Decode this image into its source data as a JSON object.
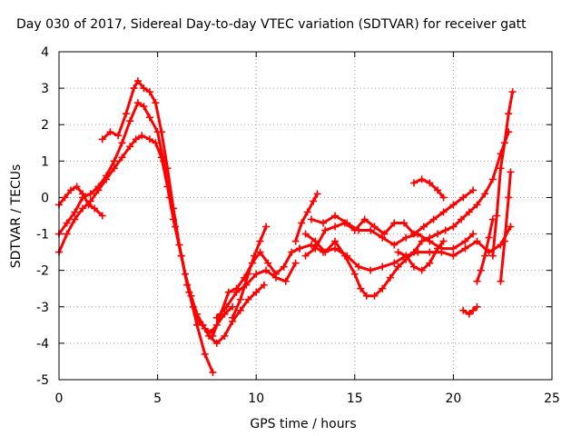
{
  "chart_data": {
    "type": "scatter",
    "title": "Day 030 of 2017, Sidereal Day-to-day VTEC variation (SDTVAR) for receiver gatt",
    "xlabel": "GPS time / hours",
    "ylabel": "SDTVAR / TECUs",
    "xlim": [
      0,
      25
    ],
    "ylim": [
      -5,
      4
    ],
    "x_ticks": [
      "0",
      "5",
      "10",
      "15",
      "20",
      "25"
    ],
    "y_ticks": [
      "-5",
      "-4",
      "-3",
      "-2",
      "-1",
      "0",
      "1",
      "2",
      "3",
      "4"
    ],
    "grid": true,
    "marker": "plus",
    "color": "#ff0000",
    "series": [
      {
        "x": [
          0.0,
          0.3,
          0.6,
          0.9,
          1.2,
          1.5,
          1.8,
          2.2
        ],
        "y": [
          -0.2,
          0.0,
          0.2,
          0.3,
          0.1,
          -0.2,
          -0.3,
          -0.5
        ]
      },
      {
        "x": [
          0.0,
          0.4,
          0.8,
          1.2,
          1.6,
          2.0,
          2.4,
          2.8,
          3.2,
          3.6,
          3.9,
          4.2,
          4.6,
          4.9,
          5.2,
          5.5,
          5.8,
          6.2,
          6.6,
          7.0,
          7.4,
          7.8
        ],
        "y": [
          -1.5,
          -1.0,
          -0.6,
          -0.3,
          -0.1,
          0.2,
          0.5,
          0.8,
          1.1,
          1.4,
          1.6,
          1.7,
          1.6,
          1.5,
          1.1,
          0.3,
          -0.6,
          -1.6,
          -2.6,
          -3.5,
          -4.3,
          -4.8
        ]
      },
      {
        "x": [
          0.0,
          0.4,
          0.8,
          1.2,
          1.6,
          2.0,
          2.4,
          2.8,
          3.2,
          3.6,
          4.0,
          4.3,
          4.6,
          5.0,
          5.3,
          5.6,
          5.9,
          6.2,
          6.5,
          6.8,
          7.1,
          7.4,
          7.7,
          8.0,
          8.4,
          8.8
        ],
        "y": [
          -1.0,
          -0.7,
          -0.4,
          0.0,
          0.1,
          0.3,
          0.6,
          1.0,
          1.5,
          2.1,
          2.6,
          2.5,
          2.2,
          1.8,
          1.0,
          0.0,
          -0.8,
          -1.6,
          -2.4,
          -3.0,
          -3.4,
          -3.6,
          -3.7,
          -3.5,
          -3.2,
          -3.0
        ]
      },
      {
        "x": [
          2.2,
          2.6,
          3.0,
          3.4,
          3.8,
          4.0,
          4.3,
          4.6,
          4.9,
          5.2,
          5.5,
          5.8,
          6.1,
          6.4,
          6.7,
          7.0,
          7.3,
          7.6,
          8.0,
          8.4,
          8.8,
          9.2,
          9.6,
          10.0,
          10.4
        ],
        "y": [
          1.6,
          1.8,
          1.7,
          2.3,
          3.0,
          3.2,
          3.0,
          2.9,
          2.6,
          1.8,
          0.8,
          -0.3,
          -1.3,
          -2.1,
          -2.7,
          -3.2,
          -3.5,
          -3.8,
          -4.0,
          -3.8,
          -3.4,
          -3.1,
          -2.8,
          -2.6,
          -2.4
        ]
      },
      {
        "x": [
          8.0,
          8.5,
          9.0,
          9.5,
          10.0,
          10.5,
          11.0,
          11.5,
          12.0
        ],
        "y": [
          -3.3,
          -3.0,
          -2.6,
          -2.4,
          -2.1,
          -2.0,
          -2.2,
          -2.3,
          -1.8
        ]
      },
      {
        "x": [
          7.8,
          8.2,
          8.6,
          9.0,
          9.4,
          9.8,
          10.2,
          10.6,
          11.0,
          11.4,
          11.8,
          12.2
        ],
        "y": [
          -3.8,
          -3.2,
          -2.6,
          -2.5,
          -2.2,
          -1.8,
          -1.5,
          -1.8,
          -2.1,
          -1.9,
          -1.5,
          -1.4
        ]
      },
      {
        "x": [
          8.8,
          9.2,
          9.6,
          9.9,
          10.2,
          10.5
        ],
        "y": [
          -3.3,
          -2.8,
          -2.1,
          -1.6,
          -1.2,
          -0.8
        ]
      },
      {
        "x": [
          12.0,
          12.3,
          12.6,
          12.9,
          13.1
        ],
        "y": [
          -1.2,
          -0.7,
          -0.4,
          -0.1,
          0.1
        ]
      },
      {
        "x": [
          12.2,
          12.8,
          13.4,
          14.0,
          14.6,
          15.2,
          15.8,
          16.4,
          17.0,
          17.6,
          18.2,
          18.8,
          19.4,
          20.0,
          20.6,
          21.2,
          21.8,
          22.4,
          22.9
        ],
        "y": [
          -1.4,
          -1.3,
          -1.5,
          -1.4,
          -1.6,
          -1.9,
          -2.0,
          -1.9,
          -1.8,
          -1.6,
          -1.5,
          -1.5,
          -1.5,
          -1.6,
          -1.4,
          -1.2,
          -1.5,
          -1.3,
          -0.8
        ]
      },
      {
        "x": [
          12.5,
          13.0,
          13.5,
          14.0,
          14.5,
          15.0,
          15.3,
          15.6,
          16.0,
          16.4,
          16.8,
          17.2,
          17.6,
          18.0,
          18.4,
          18.8,
          19.2,
          19.6,
          20.0,
          20.4,
          20.8,
          21.2,
          21.6,
          22.0,
          22.4,
          22.8
        ],
        "y": [
          -1.0,
          -1.2,
          -1.5,
          -1.2,
          -1.6,
          -2.1,
          -2.5,
          -2.7,
          -2.7,
          -2.5,
          -2.2,
          -1.9,
          -1.7,
          -1.5,
          -1.2,
          -1.1,
          -1.0,
          -0.9,
          -0.8,
          -0.6,
          -0.4,
          -0.2,
          0.1,
          0.5,
          1.2,
          1.8
        ]
      },
      {
        "x": [
          12.5,
          13.0,
          13.5,
          14.0,
          14.5,
          15.0,
          15.5,
          16.0,
          16.5,
          17.0,
          17.5,
          18.0,
          18.5,
          19.0,
          19.5,
          20.0,
          20.5,
          21.0
        ],
        "y": [
          -1.6,
          -1.4,
          -0.9,
          -0.8,
          -0.7,
          -0.9,
          -0.6,
          -0.8,
          -1.0,
          -0.7,
          -0.7,
          -1.0,
          -0.8,
          -0.6,
          -0.4,
          -0.2,
          0.0,
          0.2
        ]
      },
      {
        "x": [
          12.8,
          13.4,
          14.0,
          14.6,
          15.2,
          15.8,
          16.4,
          17.0,
          17.6,
          18.2,
          18.8,
          19.4,
          20.0,
          20.6,
          21.0
        ],
        "y": [
          -0.6,
          -0.7,
          -0.5,
          -0.7,
          -0.9,
          -0.9,
          -1.1,
          -1.3,
          -1.1,
          -1.0,
          -1.2,
          -1.4,
          -1.4,
          -1.2,
          -1.0
        ]
      },
      {
        "x": [
          17.2,
          17.6,
          18.0,
          18.4,
          18.8,
          19.2,
          19.5
        ],
        "y": [
          -1.5,
          -1.6,
          -1.9,
          -2.0,
          -1.8,
          -1.4,
          -1.2
        ]
      },
      {
        "x": [
          18.0,
          18.4,
          18.8,
          19.2,
          19.5
        ],
        "y": [
          0.4,
          0.5,
          0.4,
          0.2,
          0.0
        ]
      },
      {
        "x": [
          20.5,
          20.8,
          21.0,
          21.2
        ],
        "y": [
          -3.1,
          -3.2,
          -3.1,
          -3.0
        ]
      },
      {
        "x": [
          21.2,
          21.4,
          21.6,
          21.8,
          22.0
        ],
        "y": [
          -2.3,
          -2.0,
          -1.6,
          -1.1,
          -0.6
        ]
      },
      {
        "x": [
          22.0,
          22.2,
          22.4,
          22.6,
          22.8,
          23.0
        ],
        "y": [
          -1.6,
          -0.5,
          0.8,
          1.5,
          2.3,
          2.9
        ]
      },
      {
        "x": [
          22.4,
          22.6,
          22.8,
          22.9
        ],
        "y": [
          -2.3,
          -1.2,
          0.0,
          0.7
        ]
      }
    ]
  }
}
